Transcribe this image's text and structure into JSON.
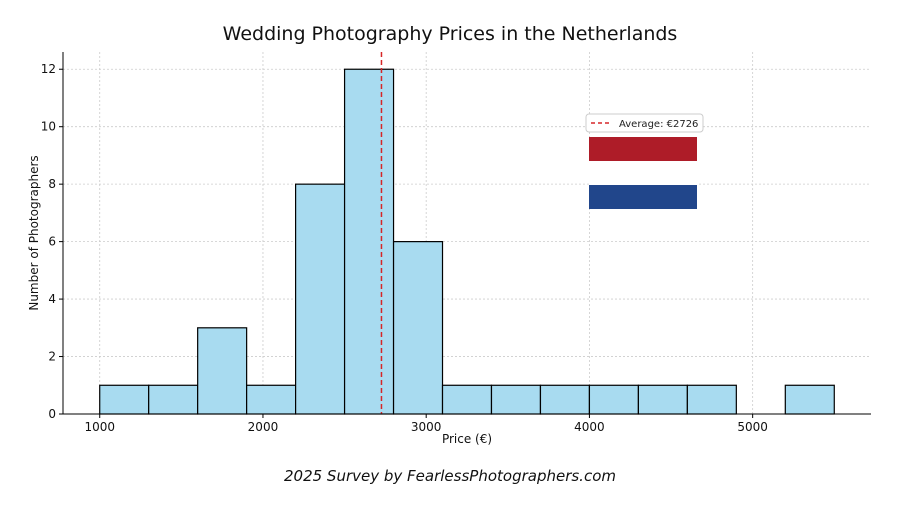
{
  "chart_data": {
    "type": "bar",
    "title": "Wedding Photography Prices in the Netherlands",
    "xlabel": "Price (€)",
    "ylabel": "Number of Photographers",
    "xlim": [
      775,
      5725
    ],
    "ylim": [
      0,
      12.6
    ],
    "x_ticks": [
      1000,
      2000,
      3000,
      4000,
      5000
    ],
    "y_ticks": [
      0,
      2,
      4,
      6,
      8,
      10,
      12
    ],
    "bins": [
      {
        "start": 1000,
        "end": 1300,
        "count": 1
      },
      {
        "start": 1300,
        "end": 1600,
        "count": 1
      },
      {
        "start": 1600,
        "end": 1900,
        "count": 3
      },
      {
        "start": 1900,
        "end": 2200,
        "count": 1
      },
      {
        "start": 2200,
        "end": 2500,
        "count": 8
      },
      {
        "start": 2500,
        "end": 2800,
        "count": 12
      },
      {
        "start": 2800,
        "end": 3100,
        "count": 6
      },
      {
        "start": 3100,
        "end": 3400,
        "count": 1
      },
      {
        "start": 3400,
        "end": 3700,
        "count": 1
      },
      {
        "start": 3700,
        "end": 4000,
        "count": 1
      },
      {
        "start": 4000,
        "end": 4300,
        "count": 1
      },
      {
        "start": 4300,
        "end": 4600,
        "count": 1
      },
      {
        "start": 4600,
        "end": 4900,
        "count": 1
      },
      {
        "start": 4900,
        "end": 5200,
        "count": 0
      },
      {
        "start": 5200,
        "end": 5500,
        "count": 1
      }
    ],
    "average": 2726,
    "legend": {
      "entries": [
        "Average: €2726"
      ],
      "placement": "top-right"
    },
    "grid": true,
    "footer": "2025 Survey by FearlessPhotographers.com",
    "colors": {
      "bar_fill": "#a8dbf0",
      "bar_edge": "#000000",
      "average_line": "#d62728",
      "grid": "#cccccc",
      "axis": "#000000",
      "flag_red": "#ae1c28",
      "flag_white": "#ffffff",
      "flag_blue": "#21468b"
    }
  }
}
